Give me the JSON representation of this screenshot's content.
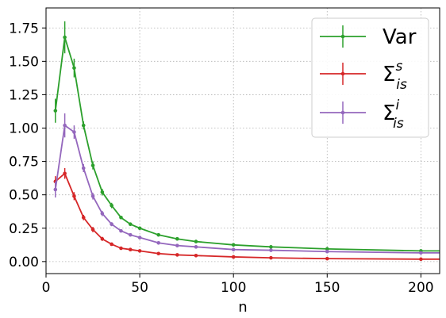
{
  "chart_data": {
    "type": "line",
    "xlabel": "n",
    "ylabel": "",
    "xlim": [
      0,
      210
    ],
    "ylim": [
      -0.09,
      1.9
    ],
    "grid": true,
    "legend_position": "top-right",
    "x_ticks": [
      "0",
      "50",
      "100",
      "150",
      "200"
    ],
    "y_ticks": [
      "0.00",
      "0.25",
      "0.50",
      "0.75",
      "1.00",
      "1.25",
      "1.50",
      "1.75"
    ],
    "x": [
      5,
      10,
      15,
      20,
      25,
      30,
      35,
      40,
      45,
      50,
      60,
      70,
      80,
      100,
      120,
      150,
      200,
      210
    ],
    "series": [
      {
        "name": "Var",
        "label_main": "Var",
        "label_sup": "",
        "label_sub": "",
        "color": "#2ca02c",
        "values": [
          1.13,
          1.68,
          1.45,
          1.02,
          0.72,
          0.52,
          0.42,
          0.33,
          0.28,
          0.25,
          0.2,
          0.17,
          0.15,
          0.125,
          0.11,
          0.095,
          0.08,
          0.08
        ],
        "errors": [
          0.09,
          0.12,
          0.07,
          0.03,
          0.03,
          0.025,
          0.02,
          0.012,
          0.01,
          0.008,
          0.006,
          0.005,
          0.005,
          0.004,
          0.004,
          0.003,
          0.003,
          0.003
        ]
      },
      {
        "name": "Σ_is^s",
        "label_main": "Σ",
        "label_sup": "s",
        "label_sub": "is",
        "color": "#d62728",
        "values": [
          0.6,
          0.66,
          0.49,
          0.33,
          0.24,
          0.17,
          0.13,
          0.1,
          0.09,
          0.08,
          0.06,
          0.05,
          0.045,
          0.035,
          0.028,
          0.022,
          0.018,
          0.018
        ],
        "errors": [
          0.04,
          0.04,
          0.03,
          0.02,
          0.02,
          0.015,
          0.01,
          0.008,
          0.007,
          0.006,
          0.005,
          0.004,
          0.004,
          0.003,
          0.003,
          0.003,
          0.002,
          0.002
        ]
      },
      {
        "name": "Σ_is^i",
        "label_main": "Σ",
        "label_sup": "i",
        "label_sub": "is",
        "color": "#9467bd",
        "values": [
          0.54,
          1.02,
          0.97,
          0.7,
          0.49,
          0.36,
          0.28,
          0.23,
          0.2,
          0.18,
          0.14,
          0.12,
          0.11,
          0.09,
          0.085,
          0.075,
          0.065,
          0.065
        ],
        "errors": [
          0.06,
          0.09,
          0.05,
          0.03,
          0.025,
          0.02,
          0.015,
          0.012,
          0.01,
          0.008,
          0.006,
          0.005,
          0.005,
          0.004,
          0.004,
          0.003,
          0.003,
          0.003
        ]
      }
    ]
  }
}
